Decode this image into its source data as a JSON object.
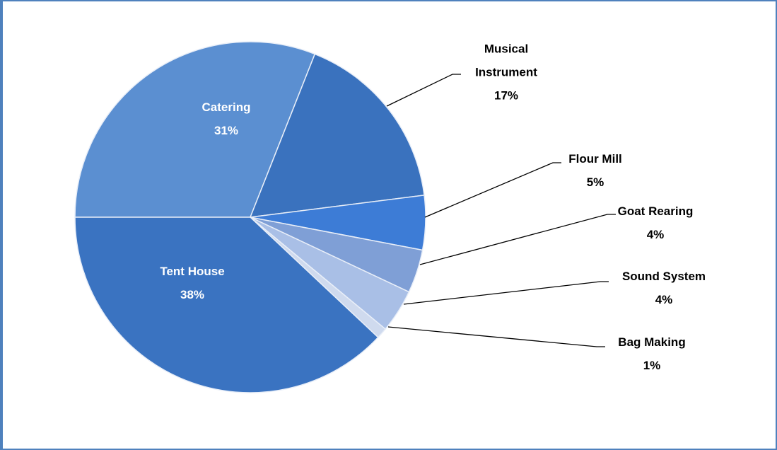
{
  "chart_data": {
    "type": "pie",
    "categories": [
      "Catering",
      "Musical Instrument",
      "Flour Mill",
      "Goat Rearing",
      "Sound System",
      "Bag Making",
      "Tent House"
    ],
    "values": [
      31,
      17,
      5,
      4,
      4,
      1,
      38
    ],
    "value_labels": [
      "31%",
      "17%",
      "5%",
      "4%",
      "4%",
      "1%",
      "38%"
    ],
    "colors": [
      "#5b8fd1",
      "#3a72be",
      "#3d7cd6",
      "#7f9fd6",
      "#a9bfe6",
      "#cfdaee",
      "#3a73c1"
    ]
  }
}
